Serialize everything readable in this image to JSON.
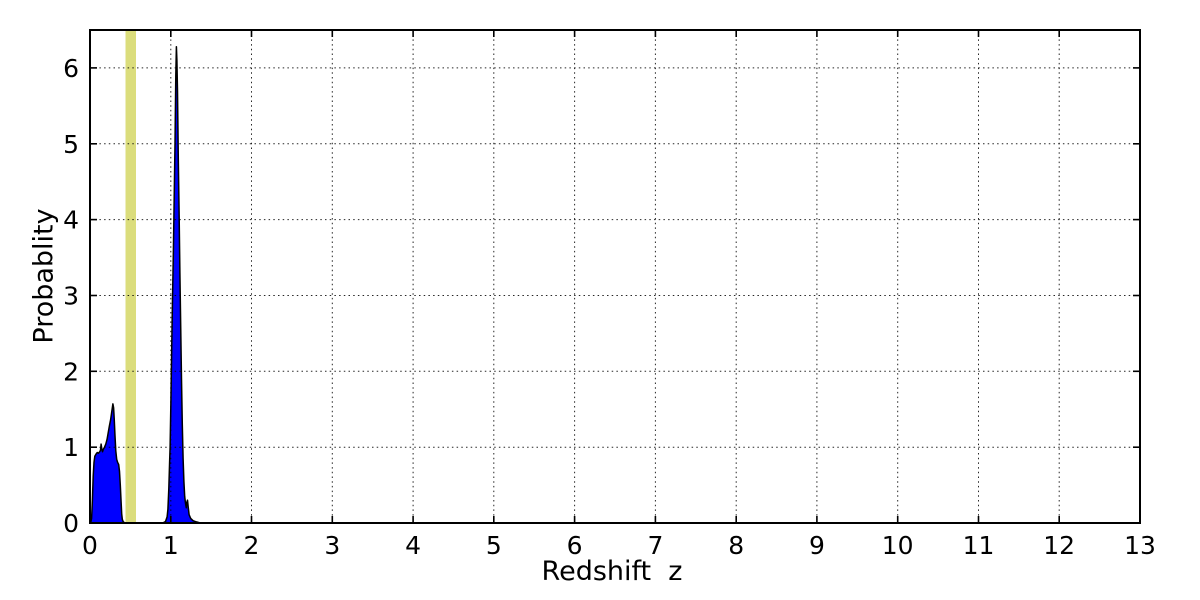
{
  "figure": {
    "background_color": "#FFFFFF"
  },
  "chart_data": {
    "type": "area",
    "title": "",
    "xlabel": "Redshift  z",
    "ylabel": "Probablity",
    "xlim": [
      0,
      13
    ],
    "ylim": [
      0,
      6.5
    ],
    "xticks": [
      0,
      1,
      2,
      3,
      4,
      5,
      6,
      7,
      8,
      9,
      10,
      11,
      12,
      13
    ],
    "yticks": [
      0,
      1,
      2,
      3,
      4,
      5,
      6
    ],
    "grid": {
      "style": "dotted",
      "color": "#000000",
      "on_top_of_data": true
    },
    "axes_color": "#000000",
    "legend": "none",
    "series": [
      {
        "name": "redshift-probability-distribution",
        "fill_color": "#0000FF",
        "edge_color": "#000000",
        "points": [
          [
            0.0,
            0.0
          ],
          [
            0.01,
            0.01
          ],
          [
            0.02,
            0.06
          ],
          [
            0.03,
            0.3
          ],
          [
            0.04,
            0.62
          ],
          [
            0.05,
            0.8
          ],
          [
            0.06,
            0.88
          ],
          [
            0.075,
            0.91
          ],
          [
            0.09,
            0.93
          ],
          [
            0.105,
            0.92
          ],
          [
            0.12,
            0.94
          ],
          [
            0.13,
            0.96
          ],
          [
            0.138,
            1.04
          ],
          [
            0.146,
            0.98
          ],
          [
            0.155,
            0.94
          ],
          [
            0.165,
            0.97
          ],
          [
            0.18,
            1.0
          ],
          [
            0.195,
            1.04
          ],
          [
            0.21,
            1.1
          ],
          [
            0.225,
            1.19
          ],
          [
            0.24,
            1.28
          ],
          [
            0.255,
            1.36
          ],
          [
            0.27,
            1.47
          ],
          [
            0.283,
            1.57
          ],
          [
            0.292,
            1.52
          ],
          [
            0.3,
            1.38
          ],
          [
            0.31,
            1.15
          ],
          [
            0.32,
            0.95
          ],
          [
            0.33,
            0.84
          ],
          [
            0.342,
            0.8
          ],
          [
            0.355,
            0.77
          ],
          [
            0.365,
            0.68
          ],
          [
            0.375,
            0.5
          ],
          [
            0.385,
            0.28
          ],
          [
            0.393,
            0.12
          ],
          [
            0.4,
            0.05
          ],
          [
            0.41,
            0.02
          ],
          [
            0.425,
            0.005
          ],
          [
            0.44,
            0.0
          ],
          [
            0.7,
            0.0
          ],
          [
            0.9,
            0.0
          ],
          [
            0.935,
            0.02
          ],
          [
            0.955,
            0.08
          ],
          [
            0.965,
            0.18
          ],
          [
            0.975,
            0.45
          ],
          [
            0.985,
            0.8
          ],
          [
            0.992,
            1.0
          ],
          [
            1.002,
            1.6
          ],
          [
            1.012,
            2.3
          ],
          [
            1.022,
            2.95
          ],
          [
            1.032,
            3.6
          ],
          [
            1.042,
            4.3
          ],
          [
            1.052,
            5.0
          ],
          [
            1.062,
            5.9
          ],
          [
            1.07,
            6.28
          ],
          [
            1.076,
            6.1
          ],
          [
            1.083,
            5.7
          ],
          [
            1.093,
            4.8
          ],
          [
            1.103,
            4.1
          ],
          [
            1.113,
            3.3
          ],
          [
            1.123,
            2.6
          ],
          [
            1.133,
            1.9
          ],
          [
            1.143,
            1.3
          ],
          [
            1.153,
            0.85
          ],
          [
            1.163,
            0.55
          ],
          [
            1.173,
            0.35
          ],
          [
            1.183,
            0.25
          ],
          [
            1.192,
            0.2
          ],
          [
            1.199,
            0.27
          ],
          [
            1.207,
            0.3
          ],
          [
            1.217,
            0.2
          ],
          [
            1.227,
            0.11
          ],
          [
            1.247,
            0.06
          ],
          [
            1.277,
            0.03
          ],
          [
            1.317,
            0.015
          ],
          [
            1.365,
            0.0
          ],
          [
            13.0,
            0.0
          ]
        ]
      }
    ],
    "annotations": [
      {
        "type": "vspan",
        "name": "reference-redshift-band",
        "x_start": 0.44,
        "x_end": 0.57,
        "color": "#DBDD7C"
      }
    ]
  }
}
